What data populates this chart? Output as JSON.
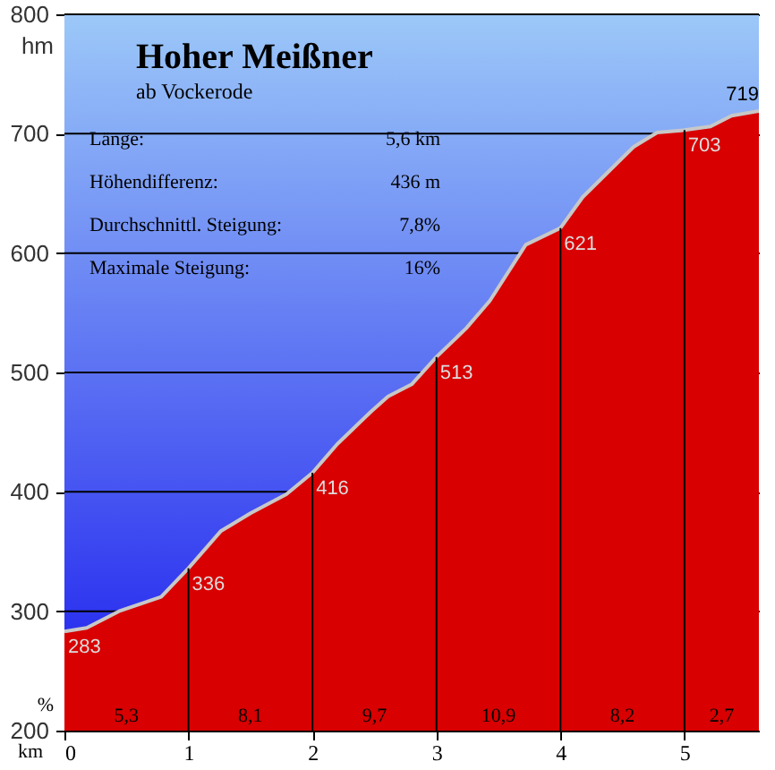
{
  "chart_data": {
    "type": "area",
    "title": "Hoher Meißner",
    "subtitle": "ab Vockerode",
    "xlabel": "km",
    "ylabel": "hm",
    "x": [
      0,
      0.18,
      0.44,
      0.78,
      1.0,
      1.26,
      1.5,
      1.79,
      2.0,
      2.2,
      2.47,
      2.61,
      2.8,
      3.0,
      3.24,
      3.43,
      3.72,
      4.0,
      4.18,
      4.59,
      4.78,
      5.0,
      5.21,
      5.38,
      5.6
    ],
    "series": [
      {
        "color": "#d80000",
        "values": [
          283,
          286,
          300,
          312,
          336,
          367,
          382,
          398,
          416,
          440,
          467,
          480,
          490,
          513,
          537,
          560,
          607,
          621,
          647,
          689,
          701,
          703,
          706,
          715,
          719
        ]
      }
    ],
    "xlim": [
      0,
      5.6
    ],
    "xticks": [
      0,
      1,
      2,
      3,
      4,
      5
    ],
    "ylim": [
      200,
      800
    ],
    "yticks": [
      200,
      300,
      400,
      500,
      600,
      700,
      800
    ],
    "grid": true,
    "annotations": [
      "Länge:",
      "5,6 km",
      "Höhendifferenz:",
      "436 m",
      "Durchschnittl. Steigung:",
      "7,8%",
      "Maximale Steigung:",
      "16%",
      "%",
      {
        "text": "283",
        "x": 0,
        "y": 283
      },
      {
        "text": "336",
        "x": 1,
        "y": 336
      },
      {
        "text": "416",
        "x": 2,
        "y": 416
      },
      {
        "text": "513",
        "x": 3,
        "y": 513
      },
      {
        "text": "621",
        "x": 4,
        "y": 621
      },
      {
        "text": "703",
        "x": 5,
        "y": 703
      },
      {
        "text": "719",
        "x": 5.6,
        "y": 719
      },
      "5,3",
      "8,1",
      "9,7",
      "10,9",
      "8,2",
      "2,7"
    ]
  }
}
